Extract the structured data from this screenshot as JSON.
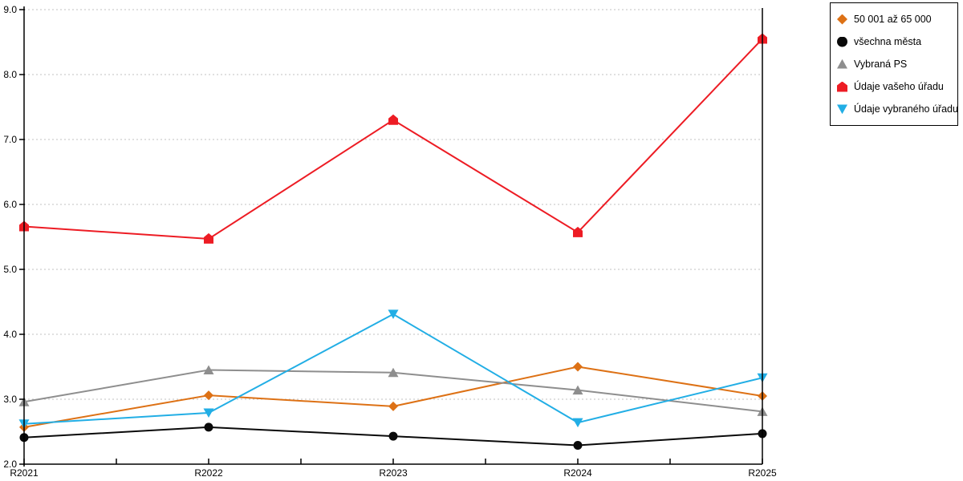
{
  "chart_data": {
    "type": "line",
    "categories": [
      "R2021",
      "R2022",
      "R2023",
      "R2024",
      "R2025"
    ],
    "series": [
      {
        "name": "50 001 až 65 000",
        "color": "#DD7115",
        "marker": "diamond",
        "values": [
          2.57,
          3.06,
          2.89,
          3.5,
          3.05
        ]
      },
      {
        "name": "všechna města",
        "color": "#0A0A0A",
        "marker": "circle",
        "values": [
          2.41,
          2.57,
          2.43,
          2.29,
          2.47
        ]
      },
      {
        "name": "Vybraná PS",
        "color": "#8E8E8E",
        "marker": "triangle-up",
        "values": [
          2.96,
          3.45,
          3.41,
          3.14,
          2.81
        ]
      },
      {
        "name": "Údaje vašeho úřadu",
        "color": "#ED1C24",
        "marker": "pentagon-up",
        "values": [
          5.66,
          5.47,
          7.3,
          5.57,
          8.55
        ]
      },
      {
        "name": "Údaje vybraného úřadu",
        "color": "#22AEE5",
        "marker": "triangle-down",
        "values": [
          2.62,
          2.79,
          4.31,
          2.64,
          3.33
        ]
      }
    ],
    "title": "",
    "xlabel": "",
    "ylabel": "",
    "ylim": [
      2.0,
      9.0
    ],
    "ytick_step": 1.0,
    "ytick_labels": [
      "2.0",
      "3.0",
      "4.0",
      "5.0",
      "6.0",
      "7.0",
      "8.0",
      "9.0"
    ],
    "grid": "horizontal dotted lines at each integer value",
    "gridline_color": "#C0C0C0",
    "axis_color": "#000000",
    "legend_position": "top-right outside plot",
    "x_minor_ticks": "midpoints between categories"
  }
}
